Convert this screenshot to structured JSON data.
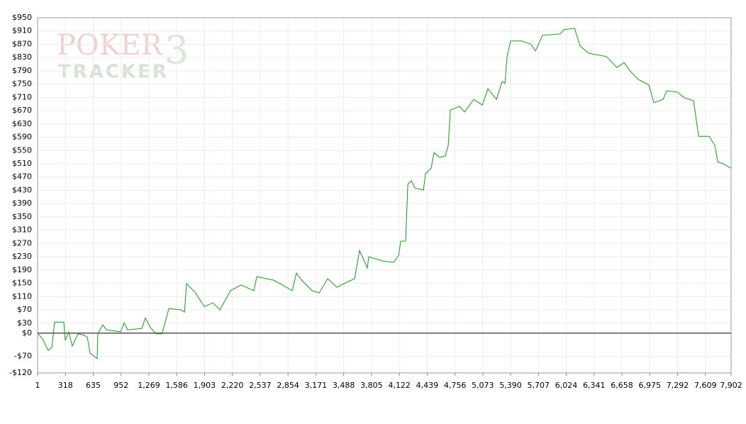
{
  "watermark": {
    "logo": "POKER",
    "version": "3",
    "sub": "TRACKER"
  },
  "chart_data": {
    "type": "line",
    "color": "#1a9a1a",
    "grid": true,
    "xlim": [
      1,
      7902
    ],
    "ylim": [
      -120,
      950
    ],
    "xticks": [
      1,
      318,
      635,
      952,
      {
        "value": 1269,
        "label": "1,269"
      },
      {
        "value": 1586,
        "label": "1,586"
      },
      {
        "value": 1903,
        "label": "1,903"
      },
      {
        "value": 2220,
        "label": "2,220"
      },
      {
        "value": 2537,
        "label": "2,537"
      },
      {
        "value": 2854,
        "label": "2,854"
      },
      {
        "value": 3171,
        "label": "3,171"
      },
      {
        "value": 3488,
        "label": "3,488"
      },
      {
        "value": 3805,
        "label": "3,805"
      },
      {
        "value": 4122,
        "label": "4,122"
      },
      {
        "value": 4439,
        "label": "4,439"
      },
      {
        "value": 4756,
        "label": "4,756"
      },
      {
        "value": 5073,
        "label": "5,073"
      },
      {
        "value": 5390,
        "label": "5,390"
      },
      {
        "value": 5707,
        "label": "5,707"
      },
      {
        "value": 6024,
        "label": "6,024"
      },
      {
        "value": 6341,
        "label": "6,341"
      },
      {
        "value": 6658,
        "label": "6,658"
      },
      {
        "value": 6975,
        "label": "6,975"
      },
      {
        "value": 7292,
        "label": "7,292"
      },
      {
        "value": 7609,
        "label": "7,609"
      },
      {
        "value": 7902,
        "label": "7,902"
      }
    ],
    "yticks": [
      {
        "value": 950,
        "label": "$950"
      },
      {
        "value": 910,
        "label": "$910"
      },
      {
        "value": 870,
        "label": "$870"
      },
      {
        "value": 830,
        "label": "$830"
      },
      {
        "value": 790,
        "label": "$790"
      },
      {
        "value": 750,
        "label": "$750"
      },
      {
        "value": 710,
        "label": "$710"
      },
      {
        "value": 670,
        "label": "$670"
      },
      {
        "value": 630,
        "label": "$630"
      },
      {
        "value": 590,
        "label": "$590"
      },
      {
        "value": 550,
        "label": "$550"
      },
      {
        "value": 510,
        "label": "$510"
      },
      {
        "value": 470,
        "label": "$470"
      },
      {
        "value": 430,
        "label": "$430"
      },
      {
        "value": 390,
        "label": "$390"
      },
      {
        "value": 350,
        "label": "$350"
      },
      {
        "value": 310,
        "label": "$310"
      },
      {
        "value": 270,
        "label": "$270"
      },
      {
        "value": 230,
        "label": "$230"
      },
      {
        "value": 190,
        "label": "$190"
      },
      {
        "value": 150,
        "label": "$150"
      },
      {
        "value": 110,
        "label": "$110"
      },
      {
        "value": 70,
        "label": "$70"
      },
      {
        "value": 30,
        "label": "$30"
      },
      {
        "value": 0,
        "label": "$0"
      },
      {
        "value": -70,
        "label": "-$70"
      },
      {
        "value": -120,
        "label": "-$120"
      }
    ],
    "x": [
      1,
      58,
      122,
      163,
      195,
      300,
      316,
      357,
      397,
      462,
      526,
      567,
      599,
      680,
      688,
      744,
      785,
      946,
      987,
      1027,
      1189,
      1229,
      1286,
      1350,
      1415,
      1447,
      1496,
      1633,
      1674,
      1698,
      1795,
      1900,
      1997,
      2078,
      2199,
      2320,
      2465,
      2498,
      2684,
      2805,
      2902,
      2950,
      3007,
      3128,
      3209,
      3306,
      3411,
      3492,
      3613,
      3669,
      3758,
      3774,
      3936,
      4057,
      4114,
      4138,
      4194,
      4219,
      4259,
      4300,
      4397,
      4421,
      4485,
      4518,
      4582,
      4647,
      4679,
      4704,
      4809,
      4865,
      4970,
      5067,
      5132,
      5229,
      5293,
      5326,
      5350,
      5390,
      5512,
      5617,
      5673,
      5754,
      5956,
      5996,
      6118,
      6182,
      6279,
      6481,
      6602,
      6683,
      6748,
      6845,
      6966,
      7022,
      7127,
      7168,
      7289,
      7370,
      7475,
      7532,
      7653,
      7717,
      7750,
      7830,
      7895
    ],
    "values": [
      0,
      -18,
      -52,
      -43,
      33,
      33,
      -22,
      3,
      -39,
      -2,
      -6,
      -12,
      -60,
      -77,
      -2,
      25,
      10,
      4,
      31,
      10,
      14,
      46,
      17,
      -2,
      -2,
      25,
      74,
      70,
      63,
      149,
      123,
      80,
      91,
      70,
      128,
      145,
      128,
      170,
      160,
      143,
      128,
      181,
      160,
      128,
      121,
      164,
      138,
      149,
      164,
      249,
      196,
      230,
      217,
      213,
      234,
      277,
      277,
      448,
      459,
      437,
      431,
      480,
      497,
      544,
      529,
      534,
      565,
      672,
      683,
      666,
      704,
      687,
      736,
      704,
      758,
      752,
      833,
      880,
      880,
      871,
      850,
      897,
      901,
      914,
      918,
      865,
      843,
      833,
      800,
      815,
      790,
      764,
      747,
      694,
      704,
      730,
      726,
      709,
      700,
      593,
      593,
      565,
      516,
      508,
      497
    ]
  }
}
